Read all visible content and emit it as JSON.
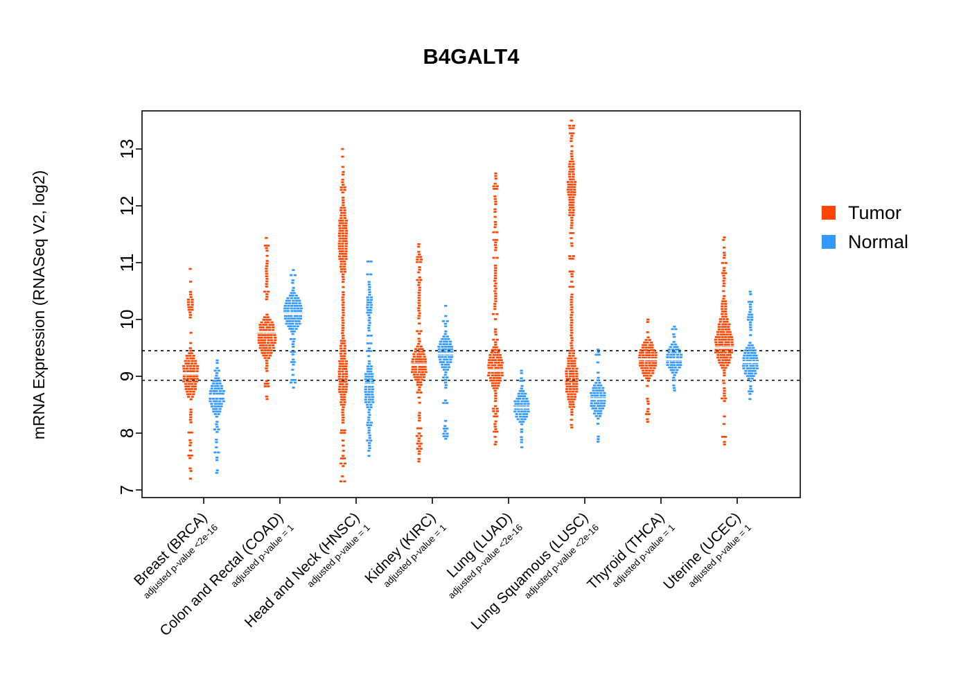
{
  "chart_data": {
    "type": "scatter",
    "variant": "beeswarm-violin",
    "title": "B4GALT4",
    "xlabel": "",
    "ylabel": "mRNA Expression (RNASeq V2, log2)",
    "ylim": [
      6.9,
      13.6
    ],
    "yticks": [
      7,
      8,
      9,
      10,
      11,
      12,
      13
    ],
    "grid": false,
    "reference_lines": [
      9.45,
      8.93
    ],
    "series_colors": {
      "tumor": "#FF4500",
      "normal": "#3399FF"
    },
    "legend": {
      "position": "right",
      "items": [
        {
          "label": "Tumor",
          "color": "#FF4500"
        },
        {
          "label": "Normal",
          "color": "#3399FF"
        }
      ]
    },
    "groups": [
      {
        "label": "Breast (BRCA)",
        "sublabel": "adjusted p-value <2e-16",
        "tumor": {
          "min": 7.2,
          "max": 10.9,
          "median": 9.05,
          "modes": [
            {
              "c": 9.03,
              "s": 0.5,
              "w": 5
            },
            {
              "c": 10.25,
              "s": 0.28,
              "w": 1.8
            }
          ]
        },
        "normal": {
          "min": 7.3,
          "max": 9.3,
          "median": 8.65,
          "modes": [
            {
              "c": 8.65,
              "s": 0.4,
              "w": 5
            }
          ]
        }
      },
      {
        "label": "Colon and Rectal (COAD)",
        "sublabel": "adjusted p-value = 1",
        "tumor": {
          "min": 8.6,
          "max": 11.45,
          "median": 9.78,
          "modes": [
            {
              "c": 9.68,
              "s": 0.45,
              "w": 6
            },
            {
              "c": 10.8,
              "s": 0.3,
              "w": 1.3
            }
          ]
        },
        "normal": {
          "min": 8.8,
          "max": 10.9,
          "median": 10.1,
          "modes": [
            {
              "c": 10.12,
              "s": 0.42,
              "w": 6
            }
          ]
        }
      },
      {
        "label": "Head and Neck (HNSC)",
        "sublabel": "adjusted p-value = 1",
        "tumor": {
          "min": 7.15,
          "max": 13.0,
          "median": null,
          "modes": [
            {
              "c": 9.0,
              "s": 0.75,
              "w": 3
            },
            {
              "c": 11.4,
              "s": 0.85,
              "w": 3
            },
            {
              "c": 10.0,
              "s": 0.5,
              "w": 1.5
            }
          ]
        },
        "normal": {
          "min": 7.6,
          "max": 11.05,
          "median": 8.85,
          "modes": [
            {
              "c": 8.8,
              "s": 0.5,
              "w": 3.5
            },
            {
              "c": 10.25,
              "s": 0.4,
              "w": 1.8
            }
          ]
        }
      },
      {
        "label": "Kidney (KIRC)",
        "sublabel": "adjusted p-value = 1",
        "tumor": {
          "min": 7.5,
          "max": 11.35,
          "median": 9.2,
          "modes": [
            {
              "c": 9.2,
              "s": 0.42,
              "w": 5
            },
            {
              "c": 10.3,
              "s": 0.3,
              "w": 1.2
            }
          ]
        },
        "normal": {
          "min": 7.9,
          "max": 10.25,
          "median": 9.4,
          "modes": [
            {
              "c": 9.42,
              "s": 0.38,
              "w": 5
            }
          ]
        }
      },
      {
        "label": "Lung (LUAD)",
        "sublabel": "adjusted p-value <2e-16",
        "tumor": {
          "min": 7.8,
          "max": 12.6,
          "median": 9.1,
          "modes": [
            {
              "c": 9.15,
              "s": 0.45,
              "w": 5
            },
            {
              "c": 10.6,
              "s": 0.5,
              "w": 1.2
            }
          ]
        },
        "normal": {
          "min": 7.75,
          "max": 9.1,
          "median": 8.45,
          "modes": [
            {
              "c": 8.45,
              "s": 0.35,
              "w": 5
            }
          ]
        }
      },
      {
        "label": "Lung Squamous (LUSC)",
        "sublabel": "adjusted p-value <2e-16",
        "tumor": {
          "min": 8.1,
          "max": 13.5,
          "median": null,
          "modes": [
            {
              "c": 8.95,
              "s": 0.65,
              "w": 4
            },
            {
              "c": 12.3,
              "s": 0.75,
              "w": 2.6
            },
            {
              "c": 10.0,
              "s": 0.5,
              "w": 1.3
            }
          ]
        },
        "normal": {
          "min": 7.85,
          "max": 9.5,
          "median": 8.6,
          "modes": [
            {
              "c": 8.6,
              "s": 0.38,
              "w": 5
            }
          ]
        }
      },
      {
        "label": "Thyroid (THCA)",
        "sublabel": "adjusted p-value = 1",
        "tumor": {
          "min": 8.2,
          "max": 10.0,
          "median": 9.3,
          "modes": [
            {
              "c": 9.3,
              "s": 0.4,
              "w": 6
            }
          ]
        },
        "normal": {
          "min": 8.75,
          "max": 9.9,
          "median": 9.3,
          "modes": [
            {
              "c": 9.3,
              "s": 0.33,
              "w": 5
            }
          ]
        }
      },
      {
        "label": "Uterine (UCEC)",
        "sublabel": "adjusted p-value = 1",
        "tumor": {
          "min": 7.8,
          "max": 11.45,
          "median": 9.5,
          "modes": [
            {
              "c": 9.55,
              "s": 0.5,
              "w": 6
            },
            {
              "c": 10.15,
              "s": 0.3,
              "w": 2.5
            }
          ]
        },
        "normal": {
          "min": 8.6,
          "max": 10.5,
          "median": 9.25,
          "modes": [
            {
              "c": 9.25,
              "s": 0.38,
              "w": 5
            },
            {
              "c": 10.05,
              "s": 0.3,
              "w": 1.6
            }
          ]
        }
      }
    ]
  }
}
